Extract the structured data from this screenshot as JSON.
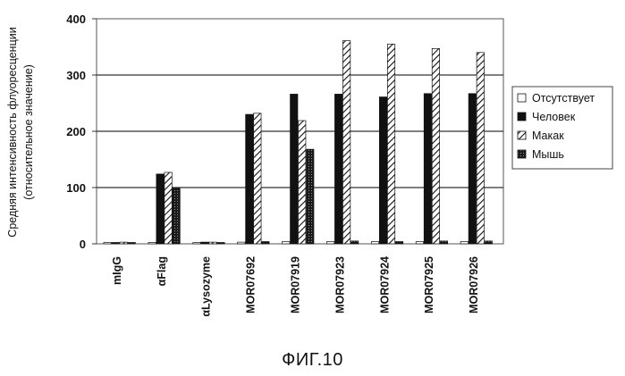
{
  "figure_caption": "ФИГ.10",
  "chart_data": {
    "type": "bar",
    "ylabel_line1": "Средняя интенсивность флуоресценции",
    "ylabel_line2": "(относительное значение)",
    "xlabel": "",
    "ylim": [
      0,
      400
    ],
    "yticks": [
      "0",
      "100",
      "200",
      "300",
      "400"
    ],
    "grid": true,
    "legend_position": "right",
    "categories": [
      "mIgG",
      "αFlag",
      "αLysozyme",
      "MOR07692",
      "MOR07919",
      "MOR07923",
      "MOR07924",
      "MOR07925",
      "MOR07926"
    ],
    "series": [
      {
        "name": "Отсутствует",
        "pattern": "empty",
        "values": [
          2,
          2,
          2,
          3,
          4,
          4,
          4,
          4,
          4
        ]
      },
      {
        "name": "Человек",
        "pattern": "solid",
        "values": [
          2,
          124,
          3,
          230,
          266,
          266,
          261,
          267,
          267
        ]
      },
      {
        "name": "Макак",
        "pattern": "hatch",
        "values": [
          3,
          127,
          3,
          232,
          219,
          361,
          355,
          347,
          340
        ]
      },
      {
        "name": "Мышь",
        "pattern": "dots",
        "values": [
          2,
          99,
          2,
          4,
          168,
          5,
          4,
          5,
          5
        ]
      }
    ]
  }
}
